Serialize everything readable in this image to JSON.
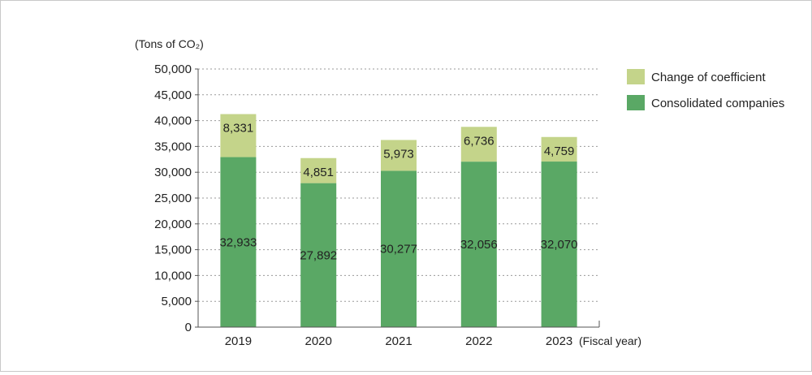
{
  "chart_data": {
    "type": "bar",
    "stacked": true,
    "ylabel": "(Tons of CO₂)",
    "xlabel": "(Fiscal year)",
    "ylim": [
      0,
      50000
    ],
    "yticks": [
      0,
      5000,
      10000,
      15000,
      20000,
      25000,
      30000,
      35000,
      40000,
      45000,
      50000
    ],
    "ytick_labels": [
      "0",
      "5,000",
      "10,000",
      "15,000",
      "20,000",
      "25,000",
      "30,000",
      "35,000",
      "40,000",
      "45,000",
      "50,000"
    ],
    "categories": [
      "2019",
      "2020",
      "2021",
      "2022",
      "2023"
    ],
    "series": [
      {
        "name": "Consolidated companies",
        "color": "#5aa865",
        "values": [
          32933,
          27892,
          30277,
          32056,
          32070
        ],
        "labels": [
          "32,933",
          "27,892",
          "30,277",
          "32,056",
          "32,070"
        ]
      },
      {
        "name": "Change of coefficient",
        "color": "#c4d48a",
        "values": [
          8331,
          4851,
          5973,
          6736,
          4759
        ],
        "labels": [
          "8,331",
          "4,851",
          "5,973",
          "6,736",
          "4,759"
        ]
      }
    ],
    "grid": true,
    "legend_position": "top-right"
  }
}
